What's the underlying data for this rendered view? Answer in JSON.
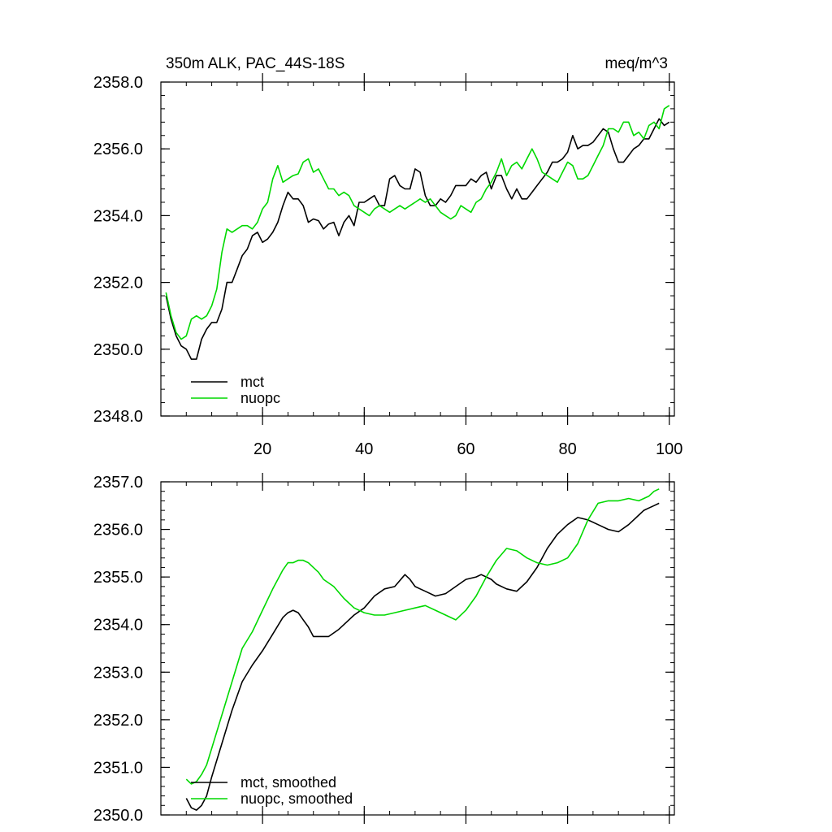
{
  "chart_data": [
    {
      "type": "line",
      "title_left": "350m ALK, PAC_44S-18S",
      "title_right": "meq/m^3",
      "xlim": [
        0,
        101
      ],
      "ylim": [
        2348.0,
        2358.0
      ],
      "x_ticks": [
        20,
        40,
        60,
        80,
        100
      ],
      "x_tick_labels": [
        "20",
        "40",
        "60",
        "80",
        "100"
      ],
      "y_ticks": [
        2348,
        2350,
        2352,
        2354,
        2356,
        2358
      ],
      "y_tick_labels": [
        "2348.0",
        "2350.0",
        "2352.0",
        "2354.0",
        "2356.0",
        "2358.0"
      ],
      "legend": {
        "position": "bottom-left",
        "entries": [
          "mct",
          "nuopc"
        ]
      },
      "series": [
        {
          "name": "mct",
          "color": "#000000",
          "x": [
            1,
            2,
            3,
            4,
            5,
            6,
            7,
            8,
            9,
            10,
            11,
            12,
            13,
            14,
            15,
            16,
            17,
            18,
            19,
            20,
            21,
            22,
            23,
            24,
            25,
            26,
            27,
            28,
            29,
            30,
            31,
            32,
            33,
            34,
            35,
            36,
            37,
            38,
            39,
            40,
            41,
            42,
            43,
            44,
            45,
            46,
            47,
            48,
            49,
            50,
            51,
            52,
            53,
            54,
            55,
            56,
            57,
            58,
            59,
            60,
            61,
            62,
            63,
            64,
            65,
            66,
            67,
            68,
            69,
            70,
            71,
            72,
            73,
            74,
            75,
            76,
            77,
            78,
            79,
            80,
            81,
            82,
            83,
            84,
            85,
            86,
            87,
            88,
            89,
            90,
            91,
            92,
            93,
            94,
            95,
            96,
            97,
            98,
            99,
            100
          ],
          "values": [
            2351.6,
            2350.9,
            2350.4,
            2350.1,
            2350.0,
            2349.7,
            2349.7,
            2350.3,
            2350.6,
            2350.8,
            2350.8,
            2351.2,
            2352.0,
            2352.0,
            2352.4,
            2352.8,
            2353.0,
            2353.4,
            2353.5,
            2353.2,
            2353.3,
            2353.5,
            2353.8,
            2354.3,
            2354.7,
            2354.5,
            2354.5,
            2354.3,
            2353.8,
            2353.9,
            2353.85,
            2353.6,
            2353.75,
            2353.8,
            2353.4,
            2353.8,
            2354.0,
            2353.7,
            2354.4,
            2354.4,
            2354.5,
            2354.6,
            2354.3,
            2354.3,
            2355.1,
            2355.2,
            2354.9,
            2354.8,
            2354.8,
            2355.4,
            2355.3,
            2354.6,
            2354.3,
            2354.3,
            2354.5,
            2354.4,
            2354.6,
            2354.9,
            2354.9,
            2354.9,
            2355.1,
            2355.0,
            2355.2,
            2355.3,
            2354.8,
            2355.2,
            2355.2,
            2354.8,
            2354.5,
            2354.8,
            2354.5,
            2354.5,
            2354.7,
            2354.9,
            2355.1,
            2355.3,
            2355.6,
            2355.6,
            2355.7,
            2355.9,
            2356.4,
            2356.0,
            2356.1,
            2356.1,
            2356.2,
            2356.4,
            2356.6,
            2356.5,
            2356.0,
            2355.6,
            2355.6,
            2355.8,
            2356.0,
            2356.1,
            2356.3,
            2356.3,
            2356.6,
            2356.9,
            2356.7,
            2356.8
          ]
        },
        {
          "name": "nuopc",
          "color": "#00d900",
          "x": [
            1,
            2,
            3,
            4,
            5,
            6,
            7,
            8,
            9,
            10,
            11,
            12,
            13,
            14,
            15,
            16,
            17,
            18,
            19,
            20,
            21,
            22,
            23,
            24,
            25,
            26,
            27,
            28,
            29,
            30,
            31,
            32,
            33,
            34,
            35,
            36,
            37,
            38,
            39,
            40,
            41,
            42,
            43,
            44,
            45,
            46,
            47,
            48,
            49,
            50,
            51,
            52,
            53,
            54,
            55,
            56,
            57,
            58,
            59,
            60,
            61,
            62,
            63,
            64,
            65,
            66,
            67,
            68,
            69,
            70,
            71,
            72,
            73,
            74,
            75,
            76,
            77,
            78,
            79,
            80,
            81,
            82,
            83,
            84,
            85,
            86,
            87,
            88,
            89,
            90,
            91,
            92,
            93,
            94,
            95,
            96,
            97,
            98,
            99,
            100
          ],
          "values": [
            2351.7,
            2351.0,
            2350.5,
            2350.3,
            2350.4,
            2350.9,
            2351.0,
            2350.9,
            2351.0,
            2351.3,
            2351.8,
            2352.9,
            2353.6,
            2353.5,
            2353.6,
            2353.7,
            2353.7,
            2353.6,
            2353.8,
            2354.2,
            2354.4,
            2355.1,
            2355.5,
            2355.0,
            2355.1,
            2355.2,
            2355.25,
            2355.6,
            2355.7,
            2355.3,
            2355.4,
            2355.1,
            2354.8,
            2354.8,
            2354.6,
            2354.7,
            2354.6,
            2354.3,
            2354.2,
            2354.1,
            2354.0,
            2354.2,
            2354.3,
            2354.2,
            2354.1,
            2354.2,
            2354.3,
            2354.2,
            2354.3,
            2354.4,
            2354.5,
            2354.4,
            2354.5,
            2354.3,
            2354.1,
            2354.0,
            2353.9,
            2354.0,
            2354.3,
            2354.2,
            2354.1,
            2354.4,
            2354.5,
            2354.8,
            2355.0,
            2355.3,
            2355.7,
            2355.2,
            2355.5,
            2355.6,
            2355.4,
            2355.7,
            2356.0,
            2355.7,
            2355.3,
            2355.2,
            2355.1,
            2355.0,
            2355.3,
            2355.6,
            2355.5,
            2355.1,
            2355.1,
            2355.2,
            2355.5,
            2355.8,
            2356.1,
            2356.6,
            2356.6,
            2356.5,
            2356.8,
            2356.8,
            2356.4,
            2356.5,
            2356.3,
            2356.7,
            2356.8,
            2356.6,
            2357.2,
            2357.3
          ]
        }
      ]
    },
    {
      "type": "line",
      "xlim": [
        0,
        101
      ],
      "ylim": [
        2350.0,
        2357.0
      ],
      "x_ticks": [
        20,
        40,
        60,
        80,
        100
      ],
      "y_ticks": [
        2350,
        2351,
        2352,
        2353,
        2354,
        2355,
        2356,
        2357
      ],
      "y_tick_labels": [
        "2350.0",
        "2351.0",
        "2352.0",
        "2353.0",
        "2354.0",
        "2355.0",
        "2356.0",
        "2357.0"
      ],
      "legend": {
        "position": "bottom-left",
        "entries": [
          "mct, smoothed",
          "nuopc, smoothed"
        ]
      },
      "series": [
        {
          "name": "mct, smoothed",
          "color": "#000000",
          "x": [
            5,
            6,
            7,
            8,
            9,
            10,
            12,
            14,
            16,
            18,
            20,
            22,
            24,
            25,
            26,
            27,
            28,
            29,
            30,
            31,
            33,
            35,
            36,
            38,
            40,
            42,
            44,
            46,
            48,
            49,
            50,
            51,
            52,
            54,
            56,
            58,
            60,
            62,
            63,
            64,
            65,
            66,
            68,
            70,
            72,
            74,
            76,
            78,
            80,
            82,
            84,
            86,
            88,
            90,
            92,
            94,
            95,
            96,
            97,
            98
          ],
          "values": [
            2350.35,
            2350.15,
            2350.1,
            2350.2,
            2350.4,
            2350.8,
            2351.5,
            2352.2,
            2352.8,
            2353.15,
            2353.45,
            2353.8,
            2354.15,
            2354.25,
            2354.3,
            2354.25,
            2354.1,
            2353.95,
            2353.75,
            2353.75,
            2353.75,
            2353.9,
            2354.0,
            2354.2,
            2354.35,
            2354.6,
            2354.75,
            2354.8,
            2355.05,
            2354.95,
            2354.8,
            2354.75,
            2354.7,
            2354.6,
            2354.65,
            2354.8,
            2354.95,
            2355.0,
            2355.05,
            2355.0,
            2354.95,
            2354.85,
            2354.75,
            2354.7,
            2354.9,
            2355.2,
            2355.6,
            2355.9,
            2356.1,
            2356.25,
            2356.2,
            2356.1,
            2356.0,
            2355.95,
            2356.1,
            2356.3,
            2356.4,
            2356.45,
            2356.5,
            2356.55
          ]
        },
        {
          "name": "nuopc, smoothed",
          "color": "#00d900",
          "x": [
            5,
            6,
            7,
            8,
            9,
            10,
            12,
            14,
            16,
            18,
            20,
            22,
            24,
            25,
            26,
            27,
            28,
            29,
            30,
            31,
            32,
            34,
            36,
            38,
            40,
            42,
            44,
            46,
            48,
            50,
            52,
            54,
            56,
            58,
            60,
            62,
            64,
            66,
            68,
            70,
            72,
            74,
            76,
            78,
            80,
            82,
            84,
            86,
            88,
            90,
            92,
            94,
            96,
            97,
            98
          ],
          "values": [
            2350.75,
            2350.65,
            2350.7,
            2350.85,
            2351.05,
            2351.4,
            2352.1,
            2352.8,
            2353.5,
            2353.85,
            2354.3,
            2354.75,
            2355.15,
            2355.3,
            2355.3,
            2355.35,
            2355.35,
            2355.3,
            2355.2,
            2355.1,
            2354.95,
            2354.8,
            2354.55,
            2354.35,
            2354.25,
            2354.2,
            2354.2,
            2354.25,
            2354.3,
            2354.35,
            2354.4,
            2354.3,
            2354.2,
            2354.1,
            2354.3,
            2354.6,
            2355.0,
            2355.35,
            2355.6,
            2355.55,
            2355.4,
            2355.3,
            2355.25,
            2355.3,
            2355.4,
            2355.7,
            2356.2,
            2356.55,
            2356.6,
            2356.6,
            2356.65,
            2356.6,
            2356.7,
            2356.8,
            2356.85
          ]
        }
      ]
    }
  ]
}
